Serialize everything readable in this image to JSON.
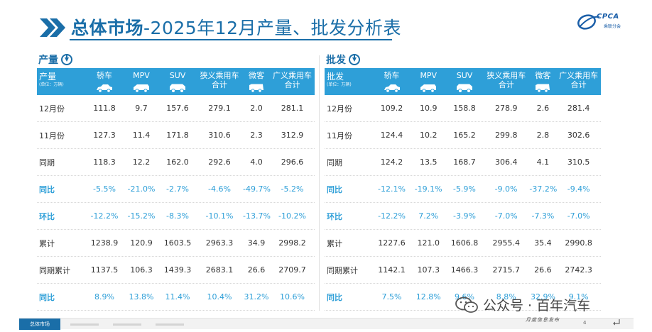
{
  "header": {
    "title_strong": "总体市场",
    "title_rest": "-2025年12月产量、批发分析表",
    "logo_text": "CPCA",
    "logo_sub": "乘联分会"
  },
  "production": {
    "section_title": "产量",
    "first_header": "产量",
    "unit": "(单位：万辆)",
    "columns": [
      "轿车",
      "MPV",
      "SUV",
      "狭义乘用车合计",
      "微客",
      "广义乘用车合计"
    ],
    "columns_line1": [
      "轿车",
      "MPV",
      "SUV",
      "狭义乘用车",
      "微客",
      "广义乘用车"
    ],
    "columns_line2": [
      "",
      "",
      "",
      "合计",
      "",
      "合计"
    ],
    "rows": [
      {
        "label": "12月份",
        "values": [
          "111.8",
          "9.7",
          "157.6",
          "279.1",
          "2.0",
          "281.1"
        ],
        "highlight": false
      },
      {
        "label": "11月份",
        "values": [
          "127.3",
          "11.4",
          "171.8",
          "310.6",
          "2.3",
          "312.9"
        ],
        "highlight": false
      },
      {
        "label": "同期",
        "values": [
          "118.3",
          "12.2",
          "162.0",
          "292.6",
          "4.0",
          "296.6"
        ],
        "highlight": false
      },
      {
        "label": "同比",
        "values": [
          "-5.5%",
          "-21.0%",
          "-2.7%",
          "-4.6%",
          "-49.7%",
          "-5.2%"
        ],
        "highlight": true
      },
      {
        "label": "环比",
        "values": [
          "-12.2%",
          "-15.2%",
          "-8.3%",
          "-10.1%",
          "-13.7%",
          "-10.2%"
        ],
        "highlight": true
      },
      {
        "label": "累计",
        "values": [
          "1238.9",
          "120.9",
          "1603.5",
          "2963.3",
          "34.9",
          "2998.2"
        ],
        "highlight": false
      },
      {
        "label": "同期累计",
        "values": [
          "1137.5",
          "106.3",
          "1439.3",
          "2683.1",
          "26.6",
          "2709.7"
        ],
        "highlight": false
      },
      {
        "label": "同比",
        "values": [
          "8.9%",
          "13.8%",
          "11.4%",
          "10.4%",
          "31.2%",
          "10.6%"
        ],
        "highlight": true
      }
    ]
  },
  "wholesale": {
    "section_title": "批发",
    "first_header": "批发",
    "unit": "(单位：万辆)",
    "columns_line1": [
      "轿车",
      "MPV",
      "SUV",
      "狭义乘用车",
      "微客",
      "广义乘用车"
    ],
    "columns_line2": [
      "",
      "",
      "",
      "合计",
      "",
      "合计"
    ],
    "rows": [
      {
        "label": "12月份",
        "values": [
          "109.2",
          "10.9",
          "158.8",
          "278.9",
          "2.6",
          "281.4"
        ],
        "highlight": false
      },
      {
        "label": "11月份",
        "values": [
          "124.4",
          "10.2",
          "165.2",
          "299.8",
          "2.8",
          "302.6"
        ],
        "highlight": false
      },
      {
        "label": "同期",
        "values": [
          "124.2",
          "13.5",
          "168.7",
          "306.4",
          "4.1",
          "310.5"
        ],
        "highlight": false
      },
      {
        "label": "同比",
        "values": [
          "-12.1%",
          "-19.1%",
          "-5.9%",
          "-9.0%",
          "-37.2%",
          "-9.4%"
        ],
        "highlight": true
      },
      {
        "label": "环比",
        "values": [
          "-12.2%",
          "7.2%",
          "-3.9%",
          "-7.0%",
          "-7.3%",
          "-7.0%"
        ],
        "highlight": true
      },
      {
        "label": "累计",
        "values": [
          "1227.6",
          "121.0",
          "1606.8",
          "2955.4",
          "35.4",
          "2990.8"
        ],
        "highlight": false
      },
      {
        "label": "同期累计",
        "values": [
          "1142.1",
          "107.3",
          "1466.3",
          "2715.7",
          "26.6",
          "2742.3"
        ],
        "highlight": false
      },
      {
        "label": "同比",
        "values": [
          "7.5%",
          "12.8%",
          "9.6%",
          "8.8%",
          "32.9%",
          "9.1%"
        ],
        "highlight": true
      }
    ]
  },
  "footer": {
    "tabs": [
      "总体市场",
      "",
      "",
      ""
    ],
    "page_number": "4",
    "watermark": "公众号 · 百年汽车",
    "watermark_sub": "月度信息发布"
  },
  "colors": {
    "accent": "#2e9fd8",
    "title": "#1a6ea8"
  }
}
